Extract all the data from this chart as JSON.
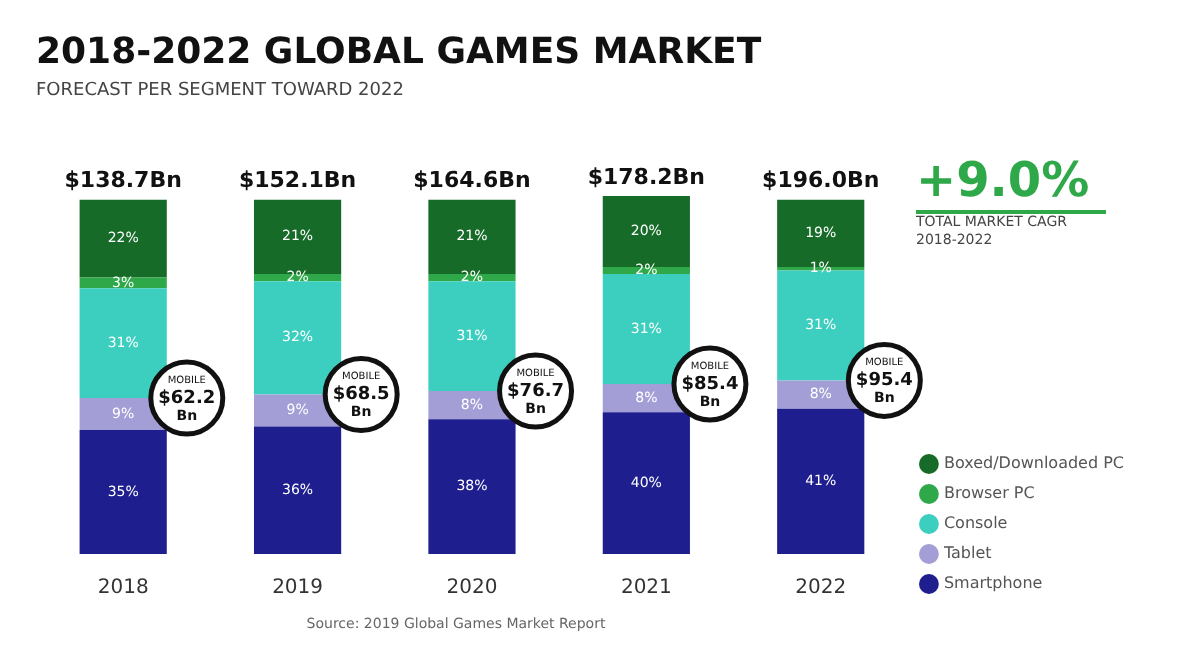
{
  "chart_data": {
    "type": "bar",
    "title": "2018-2022 GLOBAL GAMES MARKET",
    "subtitle": "FORECAST PER SEGMENT TOWARD 2022",
    "categories": [
      "2018",
      "2019",
      "2020",
      "2021",
      "2022"
    ],
    "series": [
      {
        "name": "Smartphone",
        "color": "#1e1e8e",
        "values": [
          35,
          36,
          38,
          40,
          41
        ],
        "value_labels": [
          "35%",
          "36%",
          "38%",
          "40%",
          "41%"
        ]
      },
      {
        "name": "Tablet",
        "color": "#a39fd6",
        "values": [
          9,
          9,
          8,
          8,
          8
        ],
        "value_labels": [
          "9%",
          "9%",
          "8%",
          "8%",
          "8%"
        ]
      },
      {
        "name": "Console",
        "color": "#3ccfc0",
        "values": [
          31,
          32,
          31,
          31,
          31
        ],
        "value_labels": [
          "31%",
          "32%",
          "31%",
          "31%",
          "31%"
        ]
      },
      {
        "name": "Browser PC",
        "color": "#2fa84a",
        "values": [
          3,
          2,
          2,
          2,
          1
        ],
        "value_labels": [
          "3%",
          "2%",
          "2%",
          "2%",
          "1%"
        ]
      },
      {
        "name": "Boxed/Downloaded PC",
        "color": "#176b28",
        "values": [
          22,
          21,
          21,
          20,
          19
        ],
        "value_labels": [
          "22%",
          "21%",
          "21%",
          "20%",
          "19%"
        ]
      }
    ],
    "stacked": true,
    "grid": false,
    "legend": "bottom right",
    "tick_labels": "x",
    "annotations": [
      "+9.0%",
      "TOTAL MARKET CAGR 2018-2022",
      {
        "text": "$138.7Bn",
        "x": "2018",
        "y": 100
      },
      {
        "text": "$152.1Bn",
        "x": "2019",
        "y": 100
      },
      {
        "text": "$164.6Bn",
        "x": "2020",
        "y": 100
      },
      {
        "text": "$178.2Bn",
        "x": "2021",
        "y": 101
      },
      {
        "text": "$196.0Bn",
        "x": "2022",
        "y": 100
      },
      {
        "text": "MOBILE $62.2 Bn",
        "x": "2018",
        "y": 44
      },
      {
        "text": "MOBILE $68.5 Bn",
        "x": "2019",
        "y": 45
      },
      {
        "text": "MOBILE $76.7 Bn",
        "x": "2020",
        "y": 46
      },
      {
        "text": "MOBILE $85.4 Bn",
        "x": "2021",
        "y": 48
      },
      {
        "text": "MOBILE $95.4 Bn",
        "x": "2022",
        "y": 49
      },
      "Source: 2019 Global Games Market Report"
    ]
  }
}
